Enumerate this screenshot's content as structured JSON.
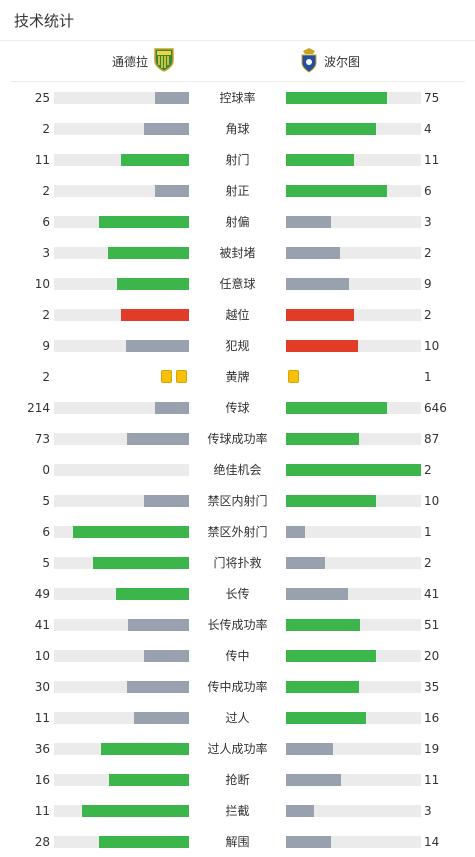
{
  "header": {
    "title": "技术统计"
  },
  "teams": {
    "home": "通德拉",
    "away": "波尔图"
  },
  "colors": {
    "green": "#3cb54a",
    "gray": "#9aa1ae",
    "red": "#e03c28",
    "track": "#ebebeb",
    "yellow": "#f4c20d"
  },
  "stats": [
    {
      "label": "控球率",
      "home": "25",
      "away": "75",
      "home_frac": 0.25,
      "away_frac": 0.75,
      "home_color": "gray",
      "away_color": "green"
    },
    {
      "label": "角球",
      "home": "2",
      "away": "4",
      "home_frac": 0.33,
      "away_frac": 0.67,
      "home_color": "gray",
      "away_color": "green"
    },
    {
      "label": "射门",
      "home": "11",
      "away": "11",
      "home_frac": 0.5,
      "away_frac": 0.5,
      "home_color": "green",
      "away_color": "green"
    },
    {
      "label": "射正",
      "home": "2",
      "away": "6",
      "home_frac": 0.25,
      "away_frac": 0.75,
      "home_color": "gray",
      "away_color": "green"
    },
    {
      "label": "射偏",
      "home": "6",
      "away": "3",
      "home_frac": 0.67,
      "away_frac": 0.33,
      "home_color": "green",
      "away_color": "gray"
    },
    {
      "label": "被封堵",
      "home": "3",
      "away": "2",
      "home_frac": 0.6,
      "away_frac": 0.4,
      "home_color": "green",
      "away_color": "gray"
    },
    {
      "label": "任意球",
      "home": "10",
      "away": "9",
      "home_frac": 0.53,
      "away_frac": 0.47,
      "home_color": "green",
      "away_color": "gray"
    },
    {
      "label": "越位",
      "home": "2",
      "away": "2",
      "home_frac": 0.5,
      "away_frac": 0.5,
      "home_color": "red",
      "away_color": "red"
    },
    {
      "label": "犯规",
      "home": "9",
      "away": "10",
      "home_frac": 0.47,
      "away_frac": 0.53,
      "home_color": "gray",
      "away_color": "red"
    },
    {
      "label": "黄牌",
      "home": "2",
      "away": "1",
      "cards": true,
      "home_cards": 2,
      "away_cards": 1
    },
    {
      "label": "传球",
      "home": "214",
      "away": "646",
      "home_frac": 0.25,
      "away_frac": 0.75,
      "home_color": "gray",
      "away_color": "green"
    },
    {
      "label": "传球成功率",
      "home": "73",
      "away": "87",
      "home_frac": 0.46,
      "away_frac": 0.54,
      "home_color": "gray",
      "away_color": "green"
    },
    {
      "label": "绝佳机会",
      "home": "0",
      "away": "2",
      "home_frac": 0,
      "away_frac": 1,
      "home_color": "gray",
      "away_color": "green"
    },
    {
      "label": "禁区内射门",
      "home": "5",
      "away": "10",
      "home_frac": 0.33,
      "away_frac": 0.67,
      "home_color": "gray",
      "away_color": "green"
    },
    {
      "label": "禁区外射门",
      "home": "6",
      "away": "1",
      "home_frac": 0.86,
      "away_frac": 0.14,
      "home_color": "green",
      "away_color": "gray"
    },
    {
      "label": "门将扑救",
      "home": "5",
      "away": "2",
      "home_frac": 0.71,
      "away_frac": 0.29,
      "home_color": "green",
      "away_color": "gray"
    },
    {
      "label": "长传",
      "home": "49",
      "away": "41",
      "home_frac": 0.54,
      "away_frac": 0.46,
      "home_color": "green",
      "away_color": "gray"
    },
    {
      "label": "长传成功率",
      "home": "41",
      "away": "51",
      "home_frac": 0.45,
      "away_frac": 0.55,
      "home_color": "gray",
      "away_color": "green"
    },
    {
      "label": "传中",
      "home": "10",
      "away": "20",
      "home_frac": 0.33,
      "away_frac": 0.67,
      "home_color": "gray",
      "away_color": "green"
    },
    {
      "label": "传中成功率",
      "home": "30",
      "away": "35",
      "home_frac": 0.46,
      "away_frac": 0.54,
      "home_color": "gray",
      "away_color": "green"
    },
    {
      "label": "过人",
      "home": "11",
      "away": "16",
      "home_frac": 0.41,
      "away_frac": 0.59,
      "home_color": "gray",
      "away_color": "green"
    },
    {
      "label": "过人成功率",
      "home": "36",
      "away": "19",
      "home_frac": 0.65,
      "away_frac": 0.35,
      "home_color": "green",
      "away_color": "gray"
    },
    {
      "label": "抢断",
      "home": "16",
      "away": "11",
      "home_frac": 0.59,
      "away_frac": 0.41,
      "home_color": "green",
      "away_color": "gray"
    },
    {
      "label": "拦截",
      "home": "11",
      "away": "3",
      "home_frac": 0.79,
      "away_frac": 0.21,
      "home_color": "green",
      "away_color": "gray"
    },
    {
      "label": "解围",
      "home": "28",
      "away": "14",
      "home_frac": 0.67,
      "away_frac": 0.33,
      "home_color": "green",
      "away_color": "gray"
    }
  ]
}
